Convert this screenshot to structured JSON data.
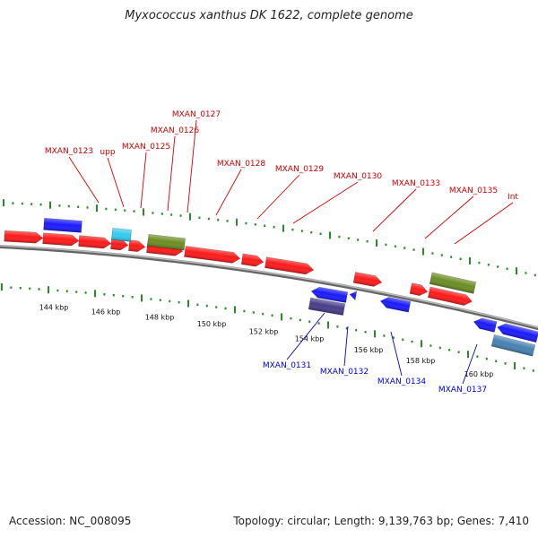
{
  "title": "Myxococcus xanthus DK 1622, complete genome",
  "footer": {
    "accession": "Accession: NC_008095",
    "summary": "Topology: circular; Length: 9,139,763 bp; Genes: 7,410"
  },
  "colors": {
    "forward_gene": "#ff1a1a",
    "reverse_gene": "#1a1aff",
    "rna_gene": "#33ccee",
    "olive_feature": "#6b8e23",
    "slate_feature": "#483d8b",
    "steel_feature": "#4682b4",
    "tick": "#2a8a2a",
    "backbone": "#888888",
    "forward_label": "#cc0000",
    "reverse_label": "#0000cc"
  },
  "kbp_ticks": [
    {
      "label": "144 kbp"
    },
    {
      "label": "146 kbp"
    },
    {
      "label": "148 kbp"
    },
    {
      "label": "150 kbp"
    },
    {
      "label": "152 kbp"
    },
    {
      "label": "154 kbp"
    },
    {
      "label": "156 kbp"
    },
    {
      "label": "158 kbp"
    },
    {
      "label": "160 kbp"
    }
  ],
  "forward_labels": [
    {
      "text": "MXAN_0123"
    },
    {
      "text": "upp"
    },
    {
      "text": "MXAN_0125"
    },
    {
      "text": "MXAN_0126"
    },
    {
      "text": "MXAN_0127"
    },
    {
      "text": "MXAN_0128"
    },
    {
      "text": "MXAN_0129"
    },
    {
      "text": "MXAN_0130"
    },
    {
      "text": "MXAN_0133"
    },
    {
      "text": "MXAN_0135"
    },
    {
      "text": "Int"
    }
  ],
  "reverse_labels": [
    {
      "text": "MXAN_0131"
    },
    {
      "text": "MXAN_0132"
    },
    {
      "text": "MXAN_0134"
    },
    {
      "text": "MXAN_0137"
    }
  ]
}
